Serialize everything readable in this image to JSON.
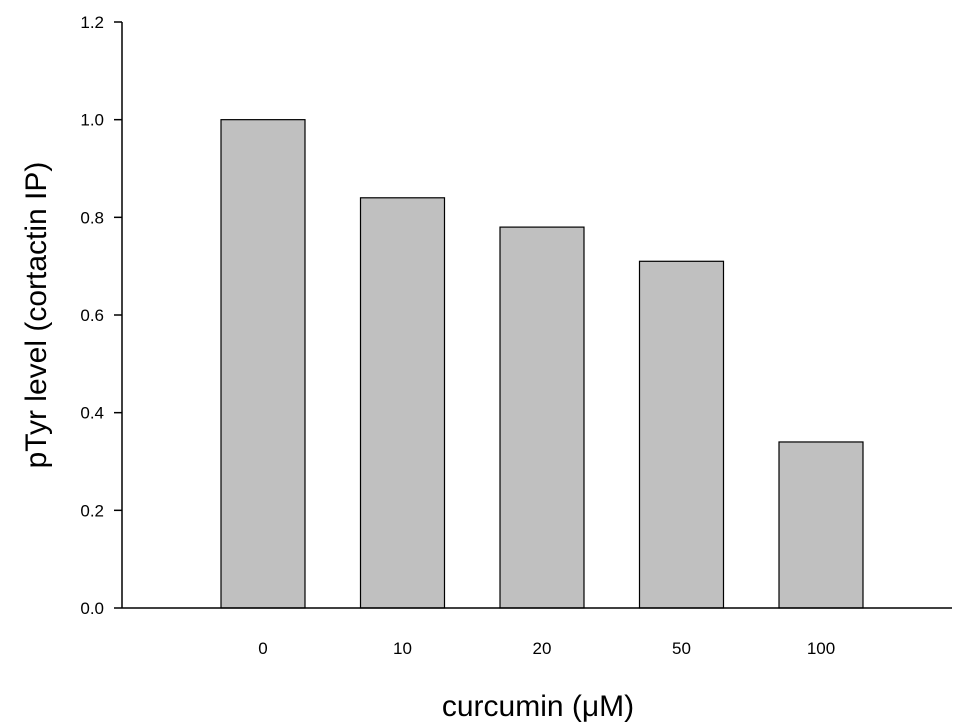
{
  "chart_data": {
    "type": "bar",
    "title": "",
    "categories": [
      "0",
      "10",
      "20",
      "50",
      "100"
    ],
    "values": [
      1.0,
      0.84,
      0.78,
      0.71,
      0.34
    ],
    "xlabel": "curcumin (μM)",
    "ylabel": "pTyr level (cortactin IP)",
    "ylim": [
      0,
      1.2
    ],
    "yticks": [
      "0.0",
      "0.2",
      "0.4",
      "0.6",
      "0.8",
      "1.0",
      "1.2"
    ],
    "grid": false,
    "legend": "none",
    "bar_color": "#c0c0c0"
  }
}
